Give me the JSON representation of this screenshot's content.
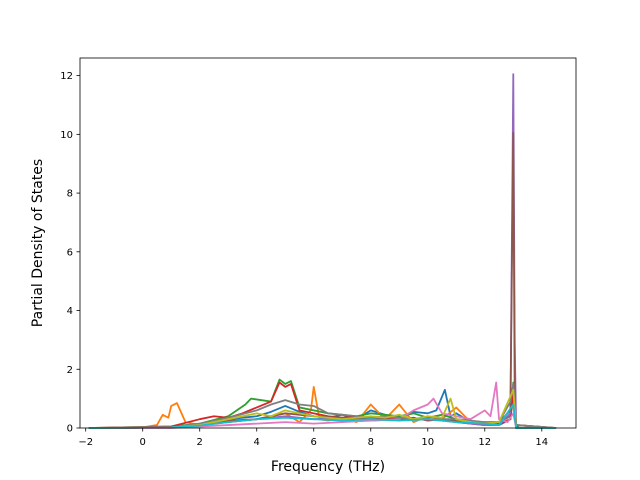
{
  "chart_data": {
    "type": "line",
    "title": "",
    "xlabel": "Frequency (THz)",
    "ylabel": "Partial Density of States",
    "xlim": [
      -2.2,
      15.2
    ],
    "ylim": [
      0,
      12.6
    ],
    "xticks": [
      -2,
      0,
      2,
      4,
      6,
      8,
      10,
      12,
      14
    ],
    "xtick_labels": [
      "−2",
      "0",
      "2",
      "4",
      "6",
      "8",
      "10",
      "12",
      "14"
    ],
    "yticks": [
      0,
      2,
      4,
      6,
      8,
      10,
      12
    ],
    "ytick_labels": [
      "0",
      "2",
      "4",
      "6",
      "8",
      "10",
      "12"
    ],
    "grid": false,
    "legend": "none",
    "series": [
      {
        "color": "#1f77b4",
        "x": [
          -1.9,
          -0.5,
          0.5,
          1.5,
          2.0,
          3.0,
          4.0,
          4.5,
          5.0,
          5.5,
          6.0,
          6.5,
          7.0,
          7.5,
          8.0,
          8.5,
          9.0,
          9.5,
          10.0,
          10.3,
          10.6,
          10.8,
          11.0,
          11.5,
          12.0,
          12.5,
          12.9,
          13.0,
          13.1,
          13.2,
          14.5
        ],
        "y": [
          0,
          0,
          0.02,
          0.05,
          0.1,
          0.3,
          0.4,
          0.55,
          0.75,
          0.55,
          0.4,
          0.35,
          0.45,
          0.3,
          0.6,
          0.45,
          0.3,
          0.55,
          0.5,
          0.6,
          1.3,
          0.4,
          0.5,
          0.2,
          0.15,
          0.1,
          0.3,
          1.2,
          0.1,
          0,
          0
        ]
      },
      {
        "color": "#ff7f0e",
        "x": [
          -1.9,
          -0.5,
          0.0,
          0.5,
          0.7,
          0.9,
          1.0,
          1.2,
          1.5,
          2.0,
          3.0,
          4.0,
          5.0,
          5.5,
          5.9,
          6.0,
          6.2,
          6.5,
          7.0,
          7.5,
          8.0,
          8.5,
          9.0,
          9.5,
          10.0,
          10.5,
          11.0,
          11.5,
          12.0,
          12.5,
          13.0,
          13.1,
          14.5
        ],
        "y": [
          0,
          0,
          0.02,
          0.1,
          0.45,
          0.35,
          0.75,
          0.85,
          0.2,
          0.1,
          0.2,
          0.3,
          0.5,
          0.2,
          0.6,
          1.4,
          0.3,
          0.25,
          0.35,
          0.2,
          0.8,
          0.3,
          0.8,
          0.2,
          0.4,
          0.3,
          0.7,
          0.2,
          0.15,
          0.1,
          0.8,
          0,
          0
        ]
      },
      {
        "color": "#2ca02c",
        "x": [
          -1.9,
          1.0,
          2.0,
          3.0,
          3.6,
          3.8,
          4.5,
          4.8,
          5.0,
          5.2,
          5.5,
          6.0,
          6.5,
          7.0,
          7.5,
          8.0,
          8.5,
          9.0,
          9.5,
          10.0,
          10.5,
          11.0,
          11.5,
          12.0,
          12.5,
          12.9,
          13.0,
          13.1,
          14.5
        ],
        "y": [
          0,
          0.05,
          0.15,
          0.4,
          0.8,
          1.0,
          0.9,
          1.65,
          1.5,
          1.6,
          0.7,
          0.6,
          0.5,
          0.45,
          0.4,
          0.5,
          0.45,
          0.4,
          0.5,
          0.35,
          0.45,
          0.3,
          0.2,
          0.15,
          0.2,
          0.4,
          1.55,
          0.1,
          0
        ]
      },
      {
        "color": "#d62728",
        "x": [
          -1.9,
          1.0,
          2.0,
          2.5,
          3.0,
          3.5,
          4.0,
          4.5,
          4.8,
          5.0,
          5.2,
          5.5,
          6.0,
          6.5,
          7.0,
          7.5,
          8.0,
          8.5,
          9.0,
          9.5,
          10.0,
          10.5,
          11.0,
          11.5,
          12.0,
          12.5,
          12.9,
          13.0,
          13.1,
          14.5
        ],
        "y": [
          0,
          0.05,
          0.3,
          0.4,
          0.35,
          0.5,
          0.7,
          0.9,
          1.55,
          1.4,
          1.5,
          0.6,
          0.5,
          0.4,
          0.35,
          0.4,
          0.3,
          0.35,
          0.3,
          0.35,
          0.25,
          0.3,
          0.2,
          0.15,
          0.1,
          0.15,
          0.3,
          1.3,
          0.1,
          0
        ]
      },
      {
        "color": "#9467bd",
        "x": [
          -1.9,
          1.0,
          2.0,
          3.0,
          4.0,
          5.0,
          6.0,
          7.0,
          8.0,
          9.0,
          10.0,
          10.5,
          11.0,
          11.5,
          12.0,
          12.5,
          12.9,
          13.0,
          13.05,
          13.1,
          14.5
        ],
        "y": [
          0,
          0.02,
          0.1,
          0.2,
          0.3,
          0.4,
          0.3,
          0.35,
          0.25,
          0.3,
          0.3,
          0.25,
          0.2,
          0.15,
          0.1,
          0.1,
          0.5,
          12.05,
          3.0,
          0,
          0
        ]
      },
      {
        "color": "#8c564b",
        "x": [
          -1.9,
          1.0,
          2.0,
          3.0,
          4.0,
          5.0,
          6.0,
          7.0,
          8.0,
          9.0,
          10.0,
          11.0,
          12.0,
          12.5,
          12.9,
          13.0,
          13.05,
          13.1,
          14.5
        ],
        "y": [
          0,
          0.02,
          0.1,
          0.25,
          0.3,
          0.5,
          0.4,
          0.35,
          0.3,
          0.3,
          0.3,
          0.25,
          0.2,
          0.2,
          0.6,
          10.05,
          1.0,
          0,
          0
        ]
      },
      {
        "color": "#e377c2",
        "x": [
          -1.9,
          1.0,
          2.0,
          3.0,
          4.0,
          5.0,
          6.0,
          7.0,
          8.0,
          9.0,
          9.5,
          10.0,
          10.2,
          10.5,
          11.0,
          11.5,
          12.0,
          12.2,
          12.4,
          12.5,
          12.8,
          13.0,
          13.1,
          14.5
        ],
        "y": [
          0,
          0,
          0.05,
          0.1,
          0.15,
          0.2,
          0.15,
          0.2,
          0.25,
          0.3,
          0.6,
          0.8,
          1.0,
          0.5,
          0.4,
          0.3,
          0.6,
          0.4,
          1.55,
          0.3,
          0.2,
          0.5,
          0,
          0
        ]
      },
      {
        "color": "#7f7f7f",
        "x": [
          -1.9,
          1.0,
          2.0,
          3.0,
          4.0,
          4.5,
          5.0,
          5.5,
          6.0,
          6.5,
          7.0,
          7.5,
          8.0,
          8.5,
          9.0,
          9.5,
          10.0,
          10.5,
          11.0,
          11.5,
          12.0,
          12.5,
          12.9,
          13.0,
          13.1,
          14.5
        ],
        "y": [
          0,
          0.02,
          0.15,
          0.35,
          0.6,
          0.8,
          0.95,
          0.8,
          0.75,
          0.5,
          0.45,
          0.4,
          0.35,
          0.4,
          0.35,
          0.3,
          0.3,
          0.3,
          0.3,
          0.25,
          0.2,
          0.2,
          0.9,
          1.5,
          0.1,
          0
        ]
      },
      {
        "color": "#bcbd22",
        "x": [
          -1.9,
          1.0,
          2.0,
          3.0,
          4.0,
          4.5,
          5.0,
          5.5,
          6.0,
          6.5,
          7.0,
          7.5,
          8.0,
          8.5,
          9.0,
          9.5,
          10.0,
          10.5,
          10.8,
          11.0,
          11.5,
          12.0,
          12.5,
          13.0,
          13.1,
          14.5
        ],
        "y": [
          0,
          0.02,
          0.1,
          0.3,
          0.5,
          0.4,
          0.6,
          0.5,
          0.4,
          0.35,
          0.3,
          0.35,
          0.4,
          0.35,
          0.45,
          0.3,
          0.4,
          0.35,
          1.0,
          0.3,
          0.2,
          0.15,
          0.2,
          1.3,
          0,
          0
        ]
      },
      {
        "color": "#17becf",
        "x": [
          -1.9,
          1.0,
          2.0,
          3.0,
          4.0,
          5.0,
          6.0,
          7.0,
          8.0,
          9.0,
          10.0,
          11.0,
          12.0,
          12.5,
          13.0,
          13.1,
          14.5
        ],
        "y": [
          0,
          0.02,
          0.08,
          0.2,
          0.3,
          0.35,
          0.3,
          0.25,
          0.3,
          0.25,
          0.3,
          0.2,
          0.15,
          0.1,
          0.8,
          0,
          0
        ]
      }
    ]
  }
}
